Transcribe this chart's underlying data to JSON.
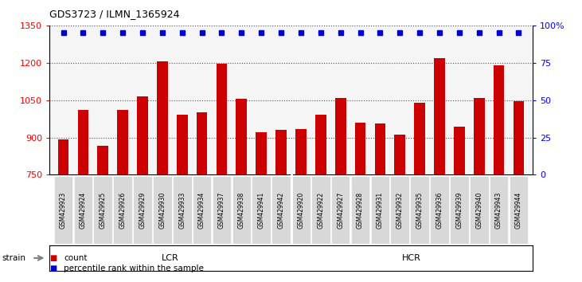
{
  "title": "GDS3723 / ILMN_1365924",
  "categories": [
    "GSM429923",
    "GSM429924",
    "GSM429925",
    "GSM429926",
    "GSM429929",
    "GSM429930",
    "GSM429933",
    "GSM429934",
    "GSM429937",
    "GSM429938",
    "GSM429941",
    "GSM429942",
    "GSM429920",
    "GSM429922",
    "GSM429927",
    "GSM429928",
    "GSM429931",
    "GSM429932",
    "GSM429935",
    "GSM429936",
    "GSM429939",
    "GSM429940",
    "GSM429943",
    "GSM429944"
  ],
  "bar_values": [
    893,
    1010,
    868,
    1010,
    1065,
    1205,
    990,
    1000,
    1195,
    1055,
    920,
    930,
    935,
    990,
    1060,
    960,
    955,
    910,
    1040,
    1220,
    945,
    1060,
    1190,
    1045
  ],
  "dot_pct": 95,
  "lcr_count": 12,
  "hcr_count": 12,
  "ylim_left": [
    750,
    1350
  ],
  "ylim_right": [
    0,
    100
  ],
  "yticks_left": [
    750,
    900,
    1050,
    1200,
    1350
  ],
  "yticks_right": [
    0,
    25,
    50,
    75,
    100
  ],
  "yticklabels_right": [
    "0",
    "25",
    "50",
    "75",
    "100%"
  ],
  "bar_color": "#cc0000",
  "dot_color": "#0000cc",
  "lcr_color": "#ccffcc",
  "hcr_color": "#55ee55",
  "xtick_bg": "#d8d8d8",
  "bg_color": "#f5f5f5",
  "grid_color": "#555555",
  "legend_count": "count",
  "legend_pct": "percentile rank within the sample",
  "strain_label": "strain",
  "lcr_label": "LCR",
  "hcr_label": "HCR",
  "bar_bottom": 750
}
